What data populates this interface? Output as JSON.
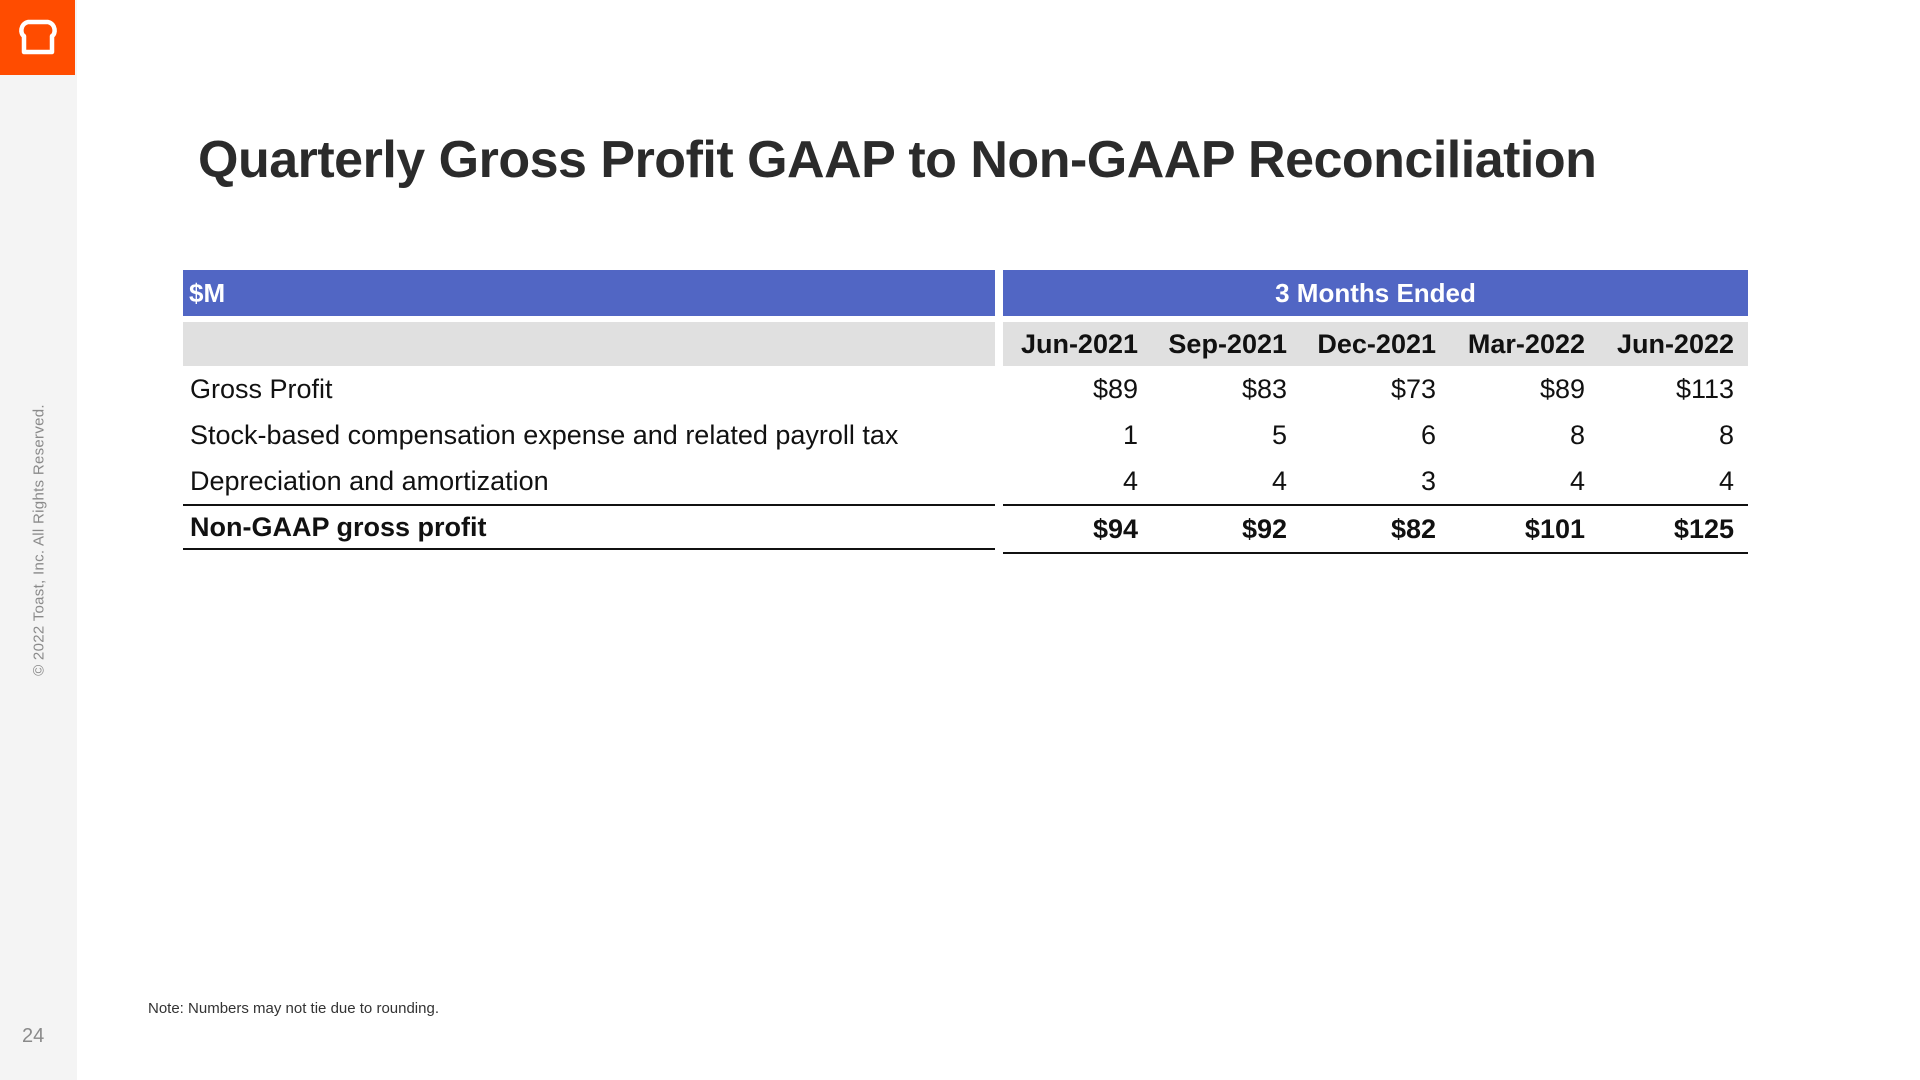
{
  "brand": {
    "logo_color": "#ff4c00",
    "accent_header_color": "#5166c4",
    "subheader_color": "#e0e0e0"
  },
  "sidebar": {
    "copyright": "© 2022 Toast, Inc. All Rights Reserved.",
    "page_number": "24"
  },
  "slide": {
    "title": "Quarterly Gross Profit GAAP to Non-GAAP Reconciliation",
    "note": "Note: Numbers may not tie due to rounding."
  },
  "table": {
    "unit_label": "$M",
    "period_header": "3 Months Ended",
    "columns": [
      "Jun-2021",
      "Sep-2021",
      "Dec-2021",
      "Mar-2022",
      "Jun-2022"
    ],
    "rows": [
      {
        "label": "Gross Profit",
        "values": [
          "$89",
          "$83",
          "$73",
          "$89",
          "$113"
        ]
      },
      {
        "label": "Stock-based compensation expense and related payroll tax",
        "values": [
          "1",
          "5",
          "6",
          "8",
          "8"
        ]
      },
      {
        "label": "Depreciation and amortization",
        "values": [
          "4",
          "4",
          "3",
          "4",
          "4"
        ]
      }
    ],
    "total": {
      "label": "Non-GAAP gross profit",
      "values": [
        "$94",
        "$92",
        "$82",
        "$101",
        "$125"
      ]
    }
  }
}
